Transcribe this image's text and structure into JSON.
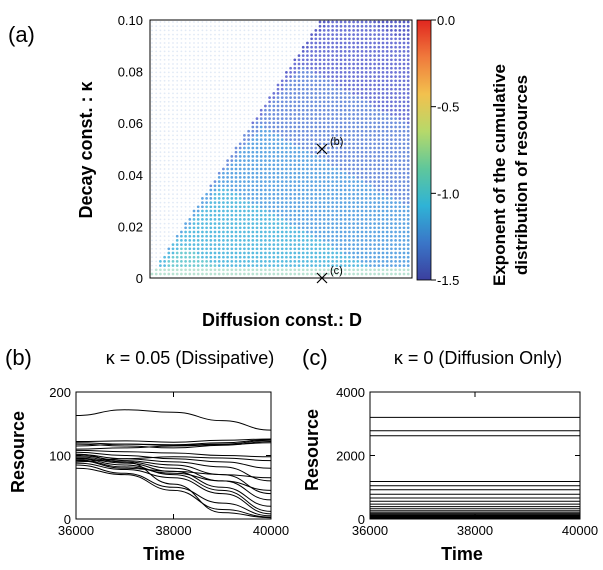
{
  "chart_data": [
    {
      "panel": "(a)",
      "type": "heatmap",
      "xlabel": "Diffusion const.: D",
      "ylabel": "Decay const. : κ",
      "yticks": [
        "0",
        "0.02",
        "0.04",
        "0.06",
        "0.08",
        "0.10"
      ],
      "ylim": [
        0,
        0.1
      ],
      "colorbar": {
        "label_line1": "Exponent of the cumulative",
        "label_line2": "distribution of resources",
        "ticks": [
          "0.0",
          "-0.5",
          "-1.0",
          "-1.5"
        ],
        "range": [
          -1.5,
          0.0
        ],
        "colors": [
          "#3b3f9e",
          "#3a76c8",
          "#2fb3d6",
          "#5fc79b",
          "#b6d96a",
          "#f2c14e",
          "#f07a3c",
          "#e0261f"
        ]
      },
      "markers": [
        {
          "label": "(b)",
          "kappa": 0.05
        },
        {
          "label": "(c)",
          "kappa": 0
        }
      ],
      "boundary": "white region (no data) above diagonal; dotted blue/cyan region below"
    },
    {
      "panel": "(b)",
      "type": "line",
      "title": "κ = 0.05 (Dissipative)",
      "xlabel": "Time",
      "ylabel": "Resource",
      "xticks": [
        "36000",
        "38000",
        "40000"
      ],
      "yticks": [
        "0",
        "100",
        "200"
      ],
      "xlim": [
        36000,
        40000
      ],
      "ylim": [
        0,
        200
      ],
      "series": [
        {
          "values": [
            163,
            172,
            168,
            155,
            140
          ]
        },
        {
          "values": [
            122,
            123,
            121,
            124,
            126
          ]
        },
        {
          "values": [
            120,
            118,
            117,
            120,
            125
          ]
        },
        {
          "values": [
            118,
            115,
            112,
            116,
            122
          ]
        },
        {
          "values": [
            115,
            118,
            116,
            118,
            124
          ]
        },
        {
          "values": [
            110,
            112,
            115,
            117,
            120
          ]
        },
        {
          "values": [
            108,
            106,
            104,
            100,
            98
          ]
        },
        {
          "values": [
            105,
            100,
            95,
            90,
            80
          ]
        },
        {
          "values": [
            102,
            95,
            90,
            82,
            60
          ]
        },
        {
          "values": [
            100,
            92,
            85,
            70,
            40
          ]
        },
        {
          "values": [
            98,
            90,
            80,
            60,
            30
          ]
        },
        {
          "values": [
            96,
            88,
            75,
            50,
            20
          ]
        },
        {
          "values": [
            95,
            85,
            70,
            45,
            12
          ]
        },
        {
          "values": [
            93,
            82,
            72,
            60,
            45
          ]
        },
        {
          "values": [
            92,
            80,
            75,
            70,
            65
          ]
        },
        {
          "values": [
            90,
            95,
            98,
            96,
            92
          ]
        },
        {
          "values": [
            88,
            78,
            65,
            40,
            8
          ]
        },
        {
          "values": [
            85,
            72,
            50,
            25,
            5
          ]
        },
        {
          "values": [
            102,
            90,
            55,
            10,
            2
          ]
        },
        {
          "values": [
            80,
            70,
            45,
            15,
            3
          ]
        }
      ]
    },
    {
      "panel": "(c)",
      "type": "line",
      "title": "κ = 0 (Diffusion Only)",
      "xlabel": "Time",
      "ylabel": "Resource",
      "xticks": [
        "36000",
        "38000",
        "40000"
      ],
      "yticks": [
        "0",
        "2000",
        "4000"
      ],
      "xlim": [
        36000,
        40000
      ],
      "ylim": [
        0,
        4000
      ],
      "series": [
        {
          "values": [
            3200,
            3200
          ]
        },
        {
          "values": [
            2780,
            2780
          ]
        },
        {
          "values": [
            2620,
            2620
          ]
        },
        {
          "values": [
            1180,
            1180
          ]
        },
        {
          "values": [
            1050,
            1050
          ]
        },
        {
          "values": [
            920,
            920
          ]
        },
        {
          "values": [
            780,
            780
          ]
        },
        {
          "values": [
            660,
            660
          ]
        },
        {
          "values": [
            560,
            560
          ]
        },
        {
          "values": [
            470,
            470
          ]
        },
        {
          "values": [
            390,
            390
          ]
        },
        {
          "values": [
            320,
            320
          ]
        },
        {
          "values": [
            260,
            260
          ]
        },
        {
          "values": [
            210,
            210
          ]
        },
        {
          "values": [
            170,
            170
          ]
        },
        {
          "values": [
            140,
            140
          ]
        },
        {
          "values": [
            115,
            115
          ]
        },
        {
          "values": [
            95,
            95
          ]
        },
        {
          "values": [
            75,
            75
          ]
        },
        {
          "values": [
            55,
            55
          ]
        },
        {
          "values": [
            40,
            40
          ]
        },
        {
          "values": [
            25,
            25
          ]
        }
      ]
    }
  ]
}
